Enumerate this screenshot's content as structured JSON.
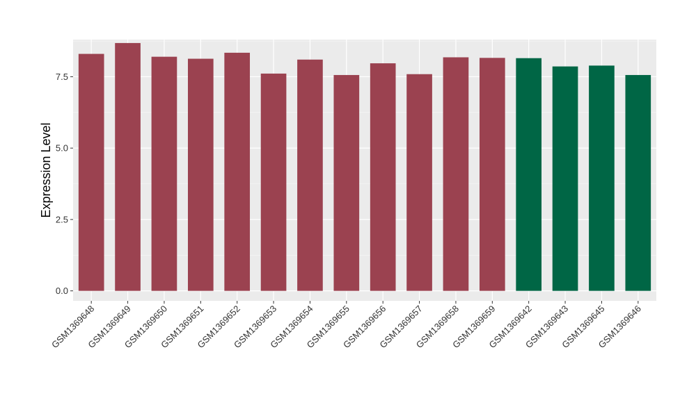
{
  "chart_data": {
    "type": "bar",
    "title": "",
    "xlabel": "",
    "ylabel": "Expression Level",
    "ylim": [
      -0.35,
      8.8
    ],
    "yticks": [
      0.0,
      2.5,
      5.0,
      7.5
    ],
    "ytick_labels": [
      "0.0",
      "2.5",
      "5.0",
      "7.5"
    ],
    "grid": true,
    "legend": "none",
    "categories": [
      "GSM1369648",
      "GSM1369649",
      "GSM1369650",
      "GSM1369651",
      "GSM1369652",
      "GSM1369653",
      "GSM1369654",
      "GSM1369655",
      "GSM1369656",
      "GSM1369657",
      "GSM1369658",
      "GSM1369659",
      "GSM1369642",
      "GSM1369643",
      "GSM1369645",
      "GSM1369646"
    ],
    "values": [
      8.3,
      8.68,
      8.2,
      8.13,
      8.34,
      7.61,
      8.1,
      7.56,
      7.97,
      7.59,
      8.18,
      8.16,
      8.15,
      7.86,
      7.89,
      7.56
    ],
    "bar_colors": [
      "#9b4250",
      "#9b4250",
      "#9b4250",
      "#9b4250",
      "#9b4250",
      "#9b4250",
      "#9b4250",
      "#9b4250",
      "#9b4250",
      "#9b4250",
      "#9b4250",
      "#9b4250",
      "#006645",
      "#006645",
      "#006645",
      "#006645"
    ]
  },
  "colors": {
    "panel_background": "#ebebeb",
    "grid_major": "#ffffff",
    "grid_minor": "#f5f5f5",
    "tick_mark": "#333333"
  }
}
